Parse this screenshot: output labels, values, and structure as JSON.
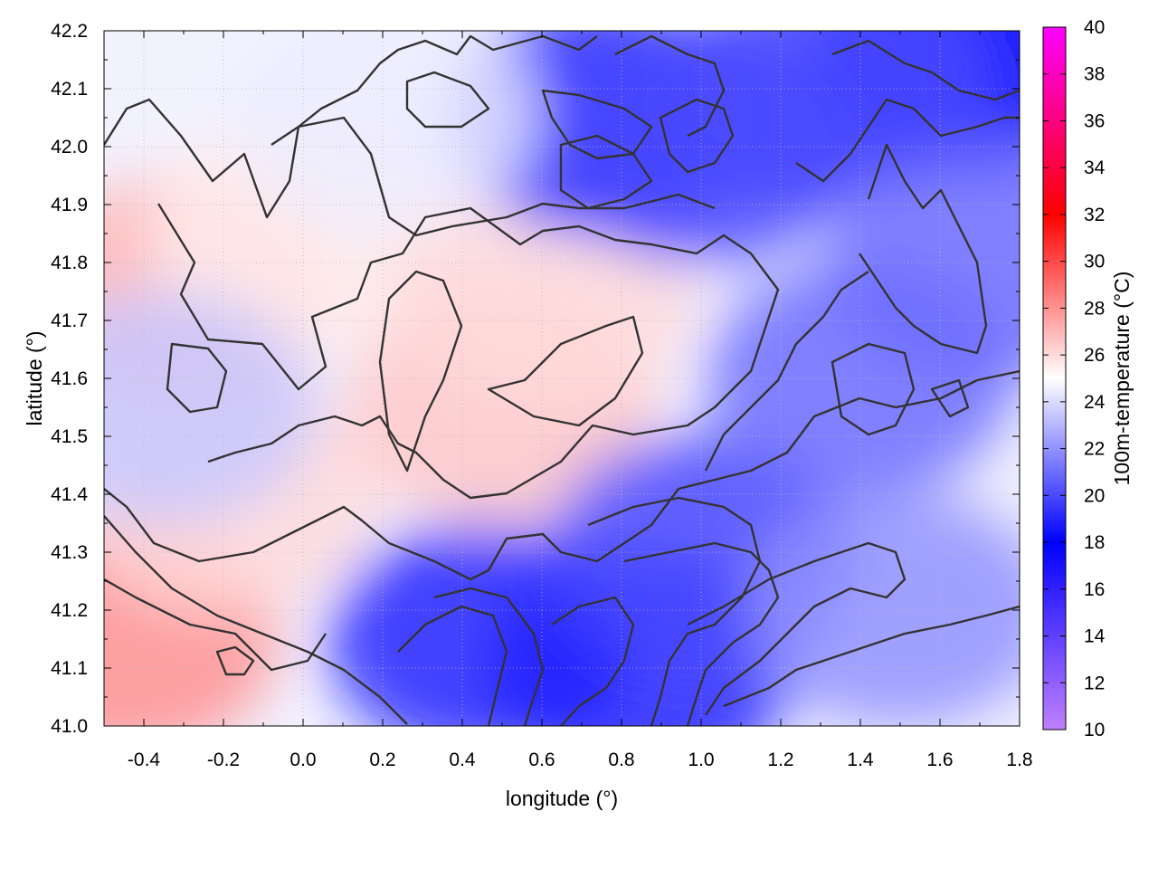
{
  "chart_data": {
    "type": "heatmap",
    "title": "",
    "xlabel": "longitude (°)",
    "ylabel": "latitude (°)",
    "colorbar_label": "100m-temperature (°C)",
    "xlim": [
      -0.5,
      1.8
    ],
    "ylim": [
      41.0,
      42.2
    ],
    "x_ticks": [
      "-0.4",
      "-0.2",
      "0.0",
      "0.2",
      "0.4",
      "0.6",
      "0.8",
      "1.0",
      "1.2",
      "1.4",
      "1.6",
      "1.8"
    ],
    "x_tick_values": [
      -0.4,
      -0.2,
      0.0,
      0.2,
      0.4,
      0.6,
      0.8,
      1.0,
      1.2,
      1.4,
      1.6,
      1.8
    ],
    "y_ticks": [
      "41.0",
      "41.1",
      "41.2",
      "41.3",
      "41.4",
      "41.5",
      "41.6",
      "41.7",
      "41.8",
      "41.9",
      "42.0",
      "42.1",
      "42.2"
    ],
    "y_tick_values": [
      41.0,
      41.1,
      41.2,
      41.3,
      41.4,
      41.5,
      41.6,
      41.7,
      41.8,
      41.9,
      42.0,
      42.1,
      42.2
    ],
    "colorbar_range": [
      10,
      40
    ],
    "colorbar_ticks": [
      "10",
      "12",
      "14",
      "16",
      "18",
      "20",
      "22",
      "24",
      "26",
      "28",
      "30",
      "32",
      "34",
      "36",
      "38",
      "40"
    ],
    "colorbar_tick_values": [
      10,
      12,
      14,
      16,
      18,
      20,
      22,
      24,
      26,
      28,
      30,
      32,
      34,
      36,
      38,
      40
    ],
    "colormap": [
      {
        "value": 10,
        "color": "#c080ff"
      },
      {
        "value": 18,
        "color": "#0000ff"
      },
      {
        "value": 25,
        "color": "#ffffff"
      },
      {
        "value": 32,
        "color": "#ff0000"
      },
      {
        "value": 40,
        "color": "#ff00ff"
      }
    ],
    "grid": true,
    "contour_color": "#333333",
    "field_samples": [
      {
        "lon": -0.45,
        "lat": 41.15,
        "temp": 28
      },
      {
        "lon": -0.3,
        "lat": 41.75,
        "temp": 27
      },
      {
        "lon": -0.2,
        "lat": 41.4,
        "temp": 26
      },
      {
        "lon": 0.0,
        "lat": 41.85,
        "temp": 25.5
      },
      {
        "lon": 0.5,
        "lat": 41.55,
        "temp": 26.5
      },
      {
        "lon": 0.6,
        "lat": 41.75,
        "temp": 26
      },
      {
        "lon": 0.45,
        "lat": 41.15,
        "temp": 19
      },
      {
        "lon": 0.85,
        "lat": 41.1,
        "temp": 19
      },
      {
        "lon": 1.0,
        "lat": 41.3,
        "temp": 20
      },
      {
        "lon": 1.4,
        "lat": 41.6,
        "temp": 21
      },
      {
        "lon": 1.5,
        "lat": 41.2,
        "temp": 22
      },
      {
        "lon": 1.65,
        "lat": 42.15,
        "temp": 18
      },
      {
        "lon": 0.75,
        "lat": 42.05,
        "temp": 19
      },
      {
        "lon": 1.0,
        "lat": 42.0,
        "temp": 20
      },
      {
        "lon": 1.3,
        "lat": 42.1,
        "temp": 20
      },
      {
        "lon": 0.2,
        "lat": 42.05,
        "temp": 24.5
      },
      {
        "lon": -0.35,
        "lat": 41.55,
        "temp": 23.5
      },
      {
        "lon": 1.7,
        "lat": 41.8,
        "temp": 21
      }
    ]
  }
}
